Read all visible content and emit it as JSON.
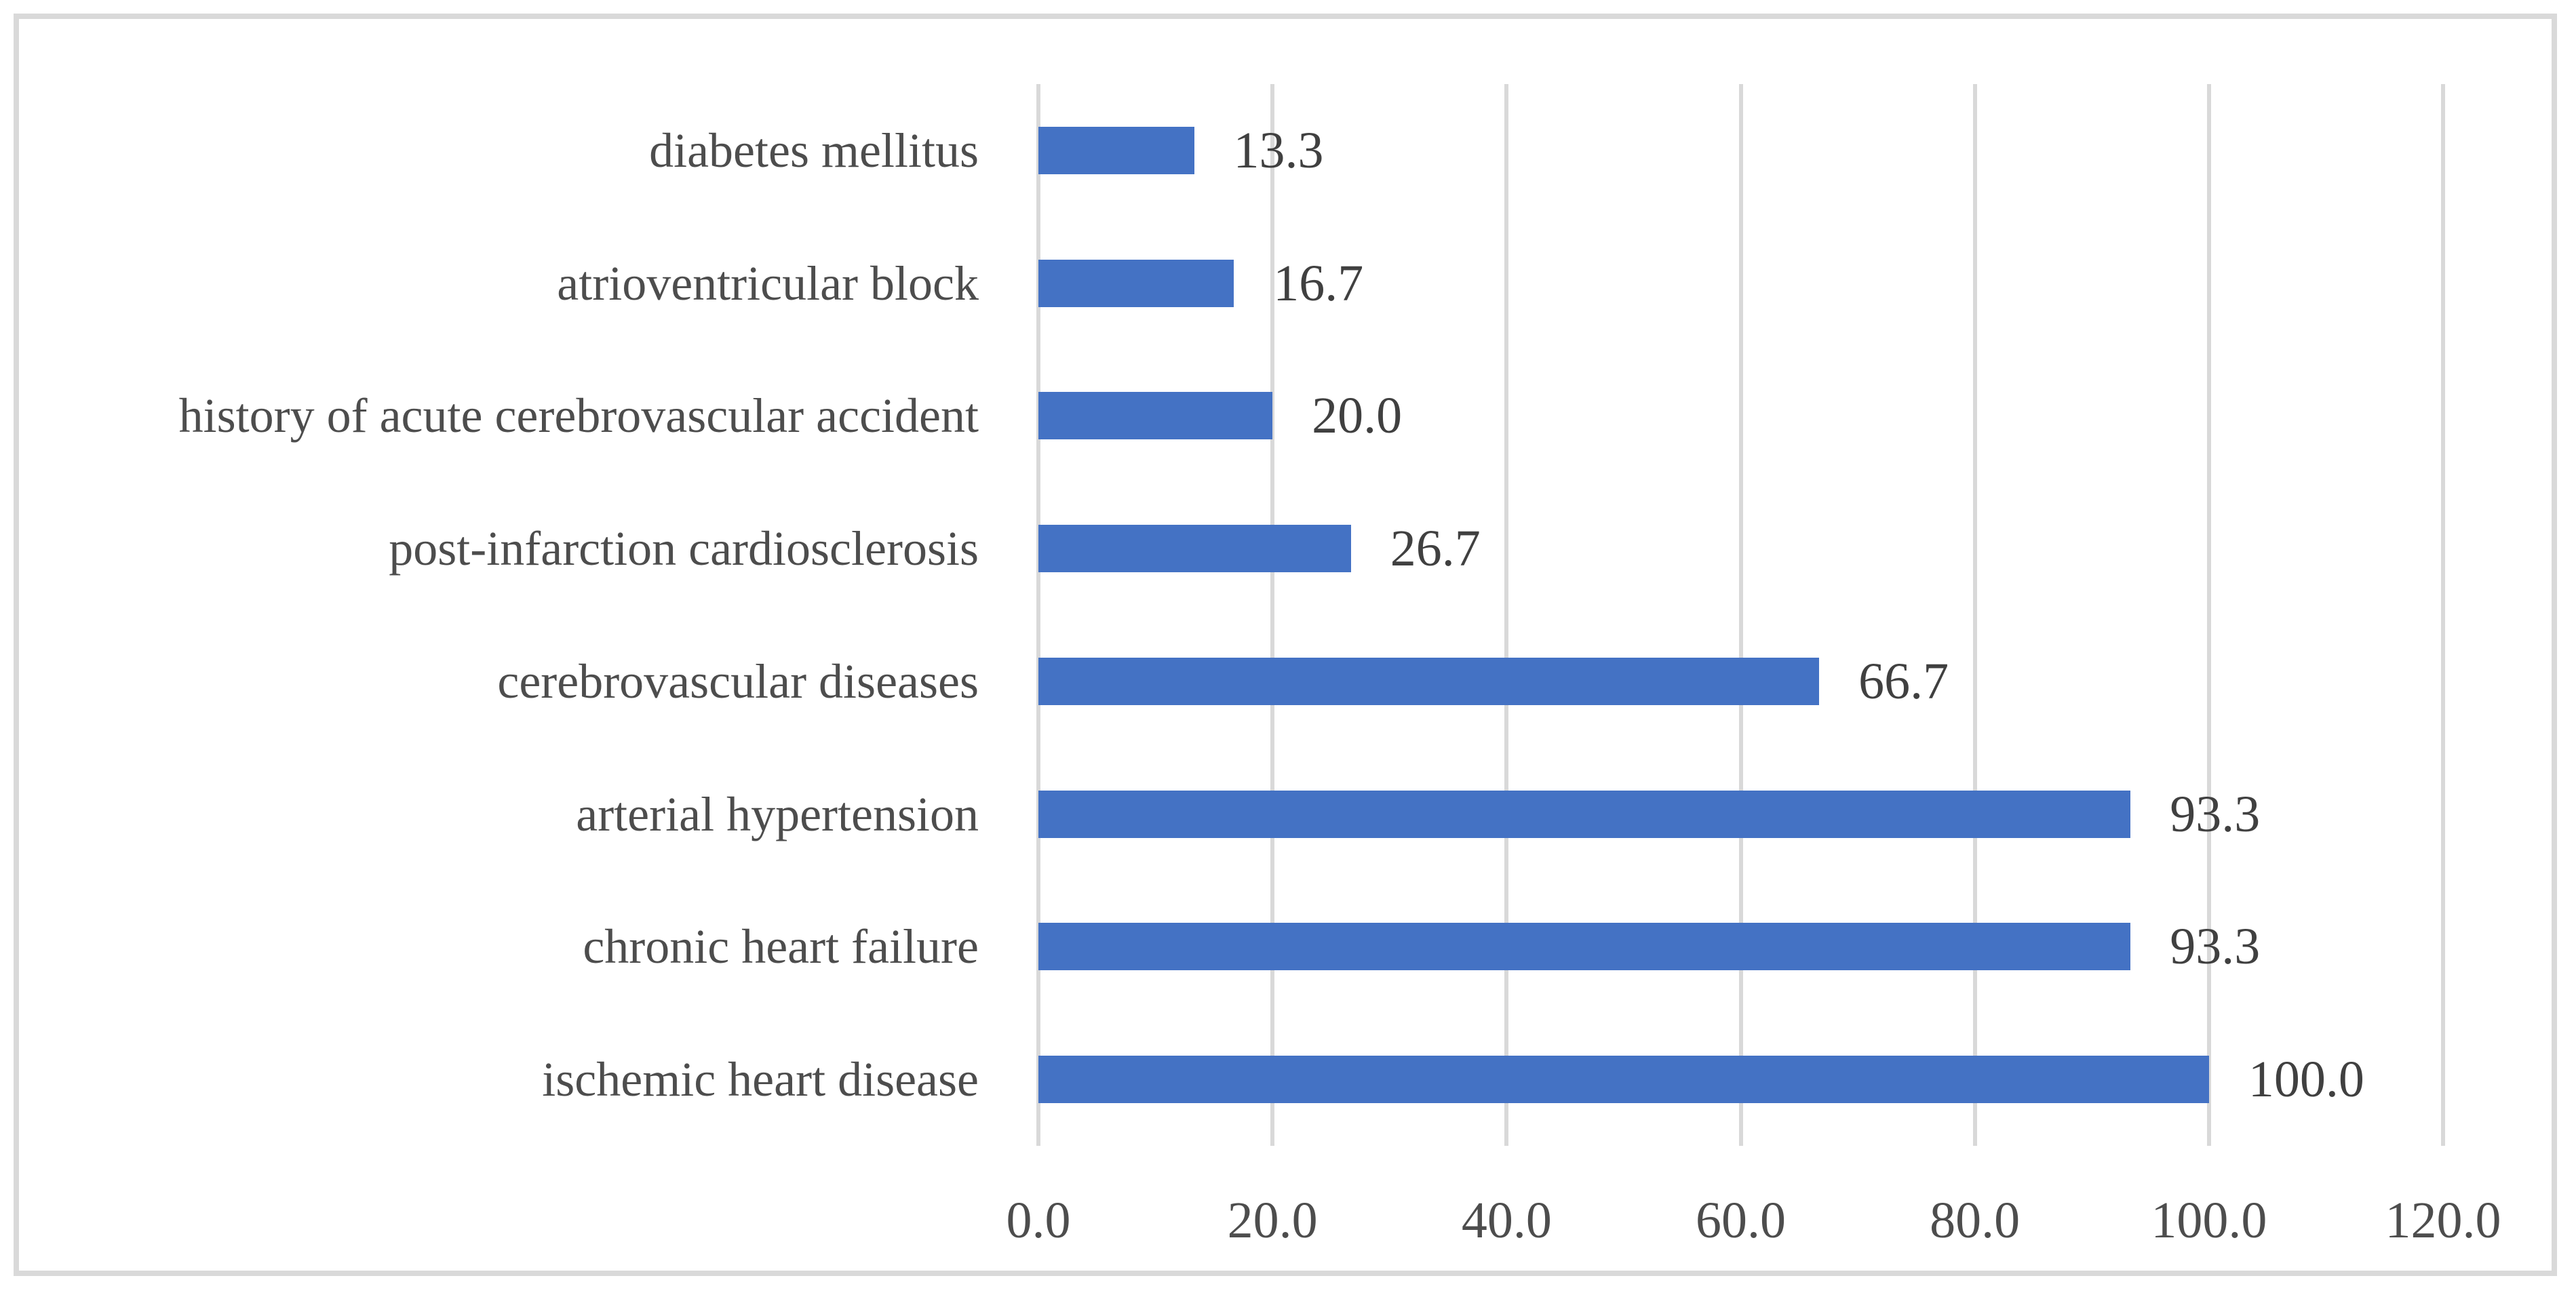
{
  "chart_data": {
    "type": "bar",
    "orientation": "horizontal",
    "title": "",
    "xlabel": "",
    "ylabel": "",
    "categories": [
      "diabetes mellitus",
      "atrioventricular block",
      "history of acute cerebrovascular accident",
      "post-infarction cardiosclerosis",
      "cerebrovascular diseases",
      "arterial hypertension",
      "chronic heart failure",
      "ischemic heart disease"
    ],
    "values": [
      13.3,
      16.7,
      20.0,
      26.7,
      66.7,
      93.3,
      93.3,
      100.0
    ],
    "value_labels": [
      "13.3",
      "16.7",
      "20.0",
      "26.7",
      "66.7",
      "93.3",
      "93.3",
      "100.0"
    ],
    "x_ticks": [
      {
        "value": 0,
        "label": "0.0"
      },
      {
        "value": 20,
        "label": "20.0"
      },
      {
        "value": 40,
        "label": "40.0"
      },
      {
        "value": 60,
        "label": "60.0"
      },
      {
        "value": 80,
        "label": "80.0"
      },
      {
        "value": 100,
        "label": "100.0"
      },
      {
        "value": 120,
        "label": "120.0"
      }
    ],
    "xlim": [
      0,
      120
    ],
    "grid": "vertical-only",
    "legend_position": "none",
    "colors": {
      "bar": "#4472c4",
      "gridline": "#d9d9d9",
      "frame_border": "#d9d9d9",
      "category_text": "#4d4d4d",
      "value_text": "#404040",
      "tick_text": "#4d4d4d",
      "background": "#ffffff"
    }
  }
}
